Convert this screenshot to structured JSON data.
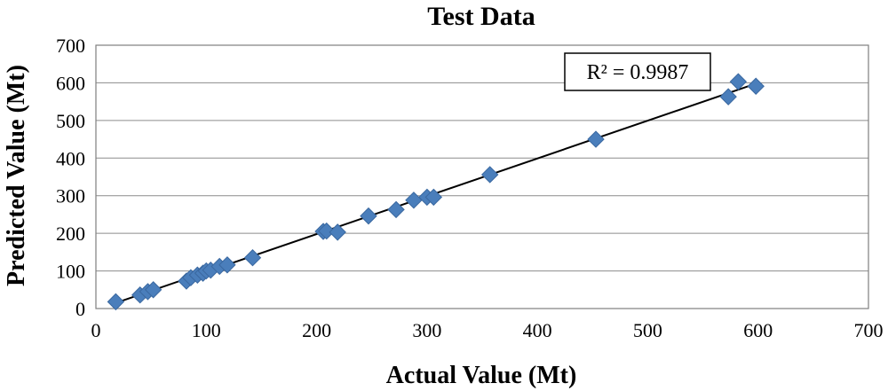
{
  "chart_data": {
    "type": "scatter",
    "title": "Test Data",
    "xlabel": "Actual Value (Mt)",
    "ylabel": "Predicted Value (Mt)",
    "xlim": [
      0,
      700
    ],
    "ylim": [
      0,
      700
    ],
    "xticks": [
      0,
      100,
      200,
      300,
      400,
      500,
      600,
      700
    ],
    "yticks": [
      0,
      100,
      200,
      300,
      400,
      500,
      600,
      700
    ],
    "grid": "horizontal",
    "marker_color": "#4a7ebb",
    "trendline": {
      "type": "linear",
      "x": [
        20,
        598
      ],
      "y": [
        17,
        598
      ],
      "color": "#000000"
    },
    "annotation": "R² = 0.9987",
    "series": [
      {
        "x": [
          18,
          40,
          47,
          52,
          82,
          86,
          92,
          97,
          100,
          104,
          112,
          119,
          142,
          206,
          209,
          219,
          247,
          272,
          288,
          300,
          306,
          357,
          453,
          573,
          582,
          598
        ],
        "y": [
          18,
          36,
          45,
          50,
          73,
          82,
          89,
          94,
          100,
          102,
          112,
          116,
          135,
          205,
          206,
          203,
          246,
          263,
          288,
          296,
          296,
          356,
          450,
          563,
          603,
          591
        ]
      }
    ]
  }
}
